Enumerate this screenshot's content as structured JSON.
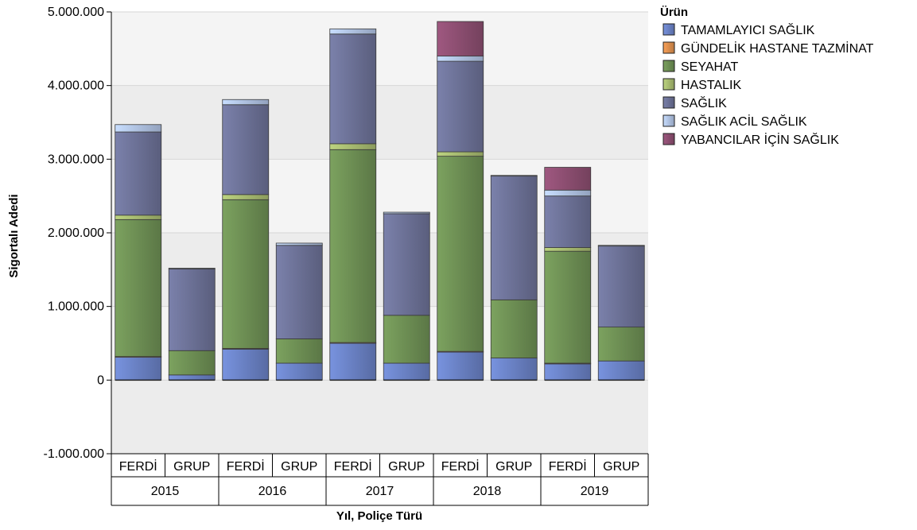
{
  "chart_data": {
    "type": "bar",
    "stacked": true,
    "xlabel": "Yıl, Poliçe Türü",
    "ylabel": "Sigortalı Adedi",
    "ylim": [
      -1000000,
      5000000
    ],
    "yticks": [
      "5.000.000",
      "4.000.000",
      "3.000.000",
      "2.000.000",
      "1.000.000",
      "0",
      "-1.000.000"
    ],
    "ytick_values": [
      5000000,
      4000000,
      3000000,
      2000000,
      1000000,
      0,
      -1000000
    ],
    "grid": true,
    "legend_title": "Ürün",
    "legend_position": "top-right",
    "groups": [
      {
        "label": "2015",
        "categories": [
          "FERDİ",
          "GRUP"
        ]
      },
      {
        "label": "2016",
        "categories": [
          "FERDİ",
          "GRUP"
        ]
      },
      {
        "label": "2017",
        "categories": [
          "FERDİ",
          "GRUP"
        ]
      },
      {
        "label": "2018",
        "categories": [
          "FERDİ",
          "GRUP"
        ]
      },
      {
        "label": "2019",
        "categories": [
          "FERDİ",
          "GRUP"
        ]
      }
    ],
    "series": [
      {
        "name": "TAMAMLAYICI SAĞLIK",
        "color": "#6b83c7",
        "values": [
          310000,
          70000,
          420000,
          230000,
          500000,
          230000,
          380000,
          300000,
          220000,
          260000
        ]
      },
      {
        "name": "GÜNDELİK HASTANE TAZMİNAT",
        "color": "#e0914f",
        "values": [
          10000,
          0,
          10000,
          0,
          10000,
          0,
          10000,
          0,
          10000,
          0
        ]
      },
      {
        "name": "SEYAHAT",
        "color": "#6f9155",
        "values": [
          1860000,
          330000,
          2020000,
          330000,
          2620000,
          650000,
          2650000,
          790000,
          1520000,
          460000
        ]
      },
      {
        "name": "HASTALIK",
        "color": "#a9bd72",
        "values": [
          60000,
          0,
          70000,
          0,
          80000,
          0,
          60000,
          0,
          50000,
          0
        ]
      },
      {
        "name": "SAĞLIK",
        "color": "#6e7399",
        "values": [
          1130000,
          1110000,
          1220000,
          1270000,
          1490000,
          1380000,
          1230000,
          1680000,
          700000,
          1100000
        ]
      },
      {
        "name": "SAĞLIK ACİL SAĞLIK",
        "color": "#b3c6e8",
        "values": [
          100000,
          10000,
          70000,
          30000,
          70000,
          20000,
          70000,
          10000,
          80000,
          10000
        ]
      },
      {
        "name": "YABANCILAR İÇİN SAĞLIK",
        "color": "#8e4f72",
        "values": [
          0,
          0,
          0,
          0,
          0,
          0,
          470000,
          0,
          310000,
          0
        ]
      }
    ]
  }
}
